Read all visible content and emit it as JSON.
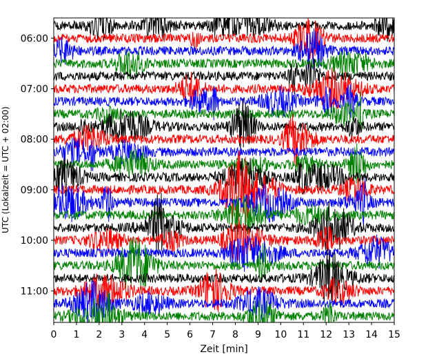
{
  "chart_data": {
    "type": "line",
    "title": "",
    "xlabel": "Zeit  [min]",
    "ylabel": "UTC (Lokalzeit = UTC + 02:00)",
    "xlim": [
      0,
      15
    ],
    "x_ticks": [
      "0",
      "1",
      "2",
      "3",
      "4",
      "5",
      "6",
      "7",
      "8",
      "9",
      "10",
      "11",
      "12",
      "13",
      "14",
      "15"
    ],
    "y_ticks": [
      "06:00",
      "07:00",
      "08:00",
      "09:00",
      "10:00",
      "11:00"
    ],
    "start_time": "05:45",
    "row_interval_min": 15,
    "row_count": 24,
    "series_colors": [
      "#000000",
      "#ff0000",
      "#0000ff",
      "#008000"
    ],
    "grid": false,
    "legend": "none"
  }
}
